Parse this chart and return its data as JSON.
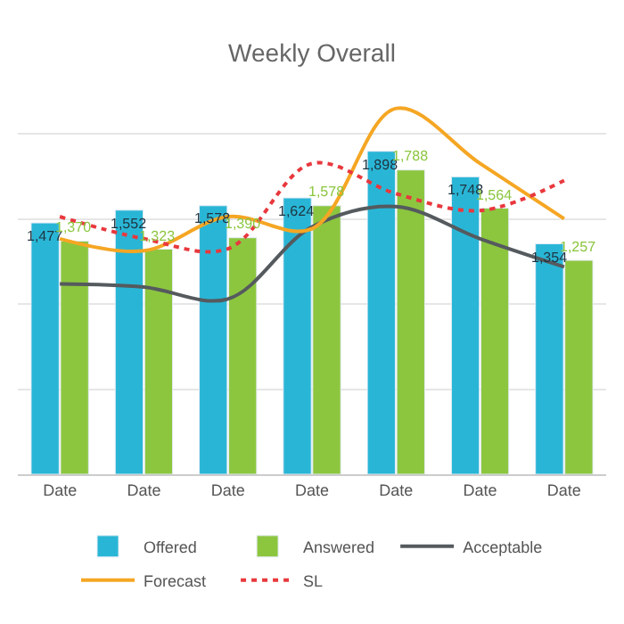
{
  "chart_data": {
    "type": "bar",
    "title": "Weekly Overall",
    "categories": [
      "Date",
      "Date",
      "Date",
      "Date",
      "Date",
      "Date",
      "Date"
    ],
    "series": [
      {
        "name": "Offered",
        "color": "#29b6d6",
        "values": [
          1477,
          1552,
          1578,
          1624,
          1898,
          1748,
          1354
        ],
        "value_labels": [
          "1,477",
          "1,552",
          "1,578",
          "1,624",
          "1,898",
          "1,748",
          "1,354"
        ]
      },
      {
        "name": "Answered",
        "color": "#8cc63f",
        "values": [
          1370,
          1323,
          1390,
          1578,
          1788,
          1564,
          1257
        ],
        "value_labels": [
          "1,370",
          "1,323",
          "1,390",
          "1,578",
          "1,788",
          "1,564",
          "1,257"
        ]
      },
      {
        "name": "Acceptable",
        "type": "line",
        "color": "#555a5e",
        "line_style": "solid",
        "values": [
          1118,
          1100,
          1030,
          1454,
          1573,
          1384,
          1219
        ]
      },
      {
        "name": "Forecast",
        "type": "line",
        "color": "#f5a623",
        "line_style": "solid",
        "values": [
          1384,
          1313,
          1514,
          1443,
          2150,
          1826,
          1502
        ]
      },
      {
        "name": "SL",
        "type": "line",
        "color": "#e8383d",
        "line_style": "dotted",
        "values": [
          1514,
          1384,
          1325,
          1826,
          1649,
          1550,
          1726
        ]
      }
    ],
    "tick_labels": "x",
    "grid": "y",
    "legend": "bottom",
    "marker": "none"
  }
}
